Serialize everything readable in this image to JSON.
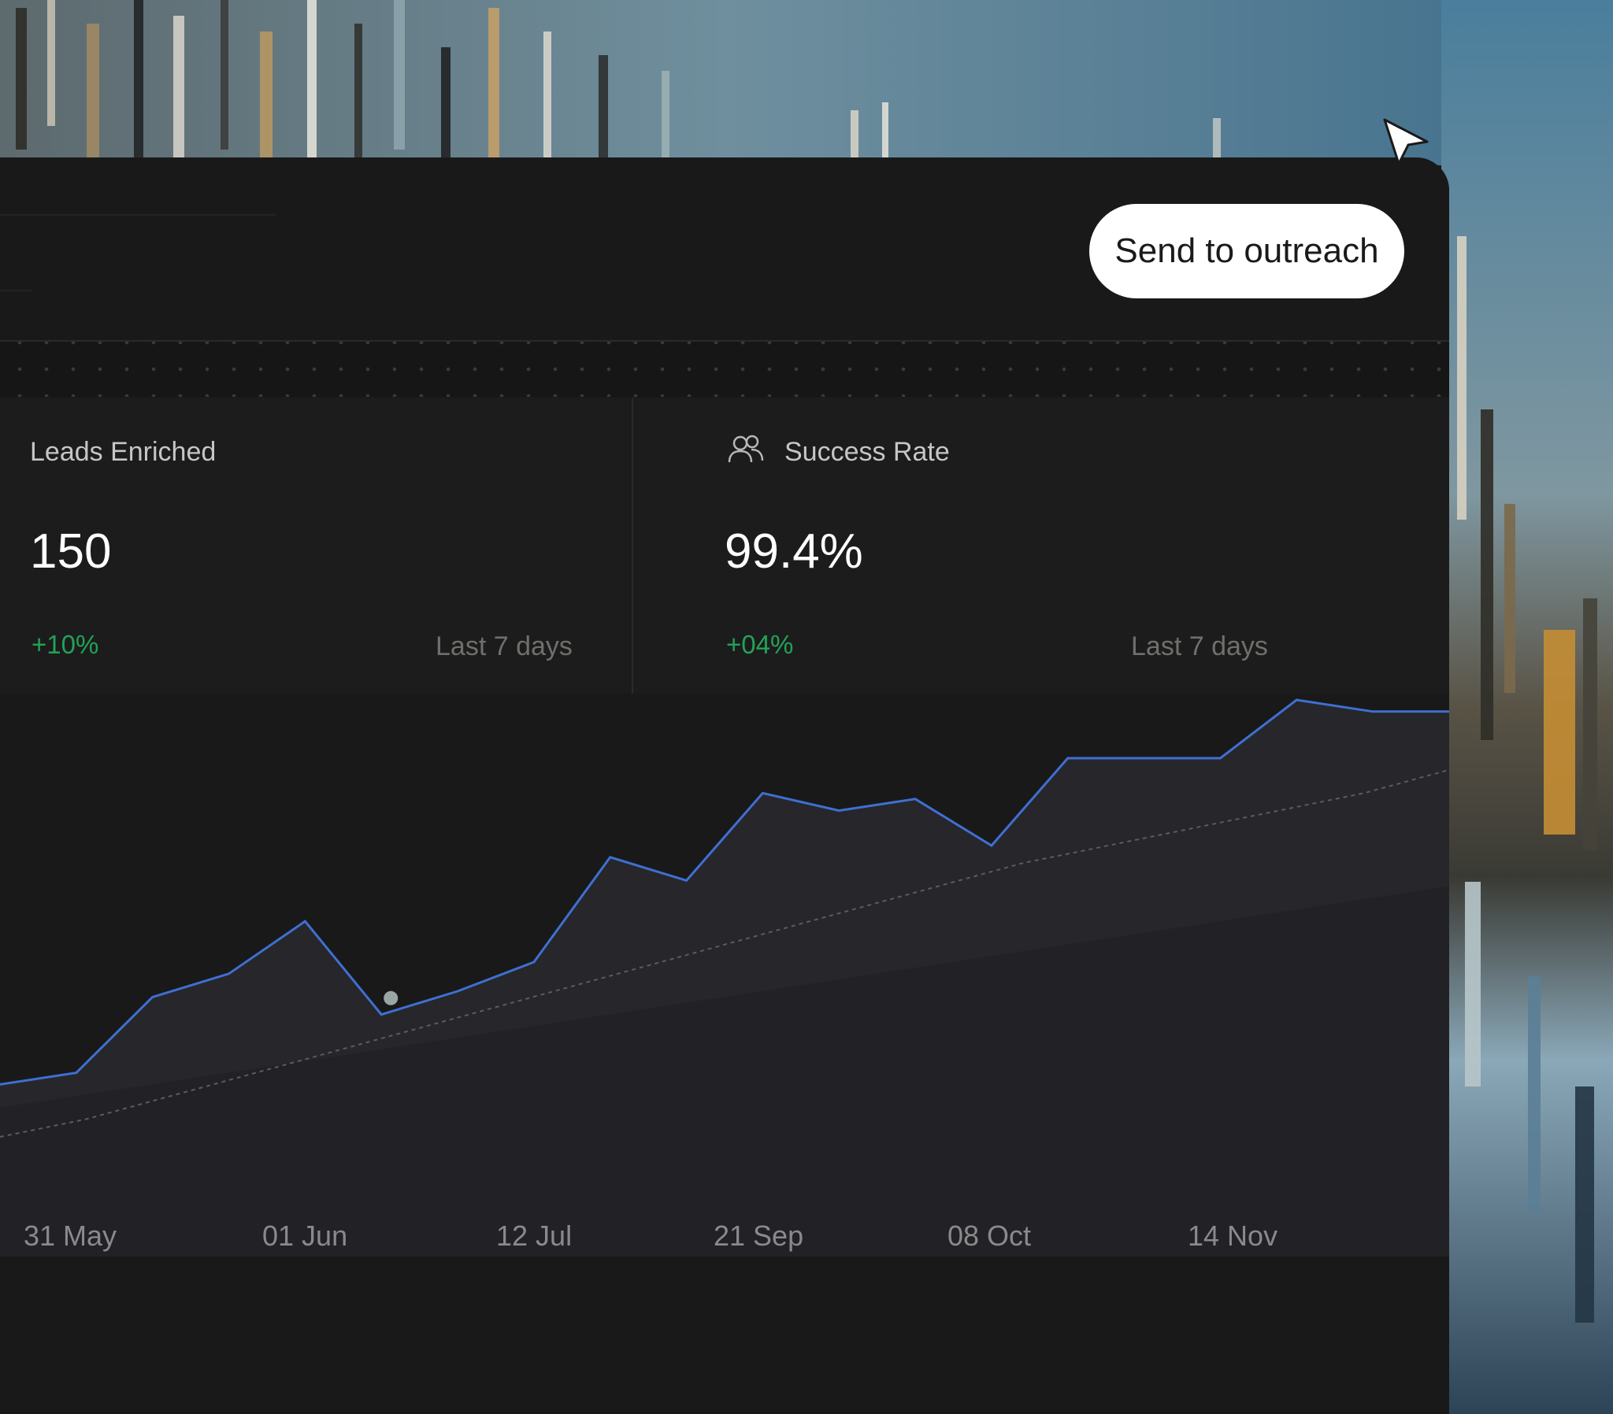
{
  "header": {
    "outreach_button_label": "Send to outreach"
  },
  "stats": [
    {
      "label": "Leads Enriched",
      "value": "150",
      "change": "+10%",
      "period": "Last 7 days",
      "icon": ""
    },
    {
      "label": "Success Rate",
      "value": "99.4%",
      "change": "+04%",
      "period": "Last 7 days",
      "icon": "users-icon"
    }
  ],
  "colors": {
    "positive": "#22a356",
    "series_line": "#3f6fd1",
    "panel_bg": "#19191a"
  },
  "chart_data": {
    "type": "area",
    "x_tick_labels": [
      "31 May",
      "01 Jun",
      "12 Jul",
      "21 Sep",
      "08 Oct",
      "14 Nov"
    ],
    "series": [
      {
        "values": [
          0.14,
          0.16,
          0.29,
          0.33,
          0.42,
          0.26,
          0.3,
          0.35,
          0.53,
          0.49,
          0.64,
          0.61,
          0.63,
          0.55,
          0.7,
          0.7,
          0.7,
          0.8,
          0.78,
          0.78
        ]
      },
      {
        "values": [
          0.05,
          0.08,
          0.12,
          0.16,
          0.2,
          0.24,
          0.28,
          0.32,
          0.36,
          0.4,
          0.44,
          0.48,
          0.52,
          0.55,
          0.58,
          0.61,
          0.64,
          0.68
        ]
      }
    ],
    "grid": false,
    "legend": "none"
  }
}
